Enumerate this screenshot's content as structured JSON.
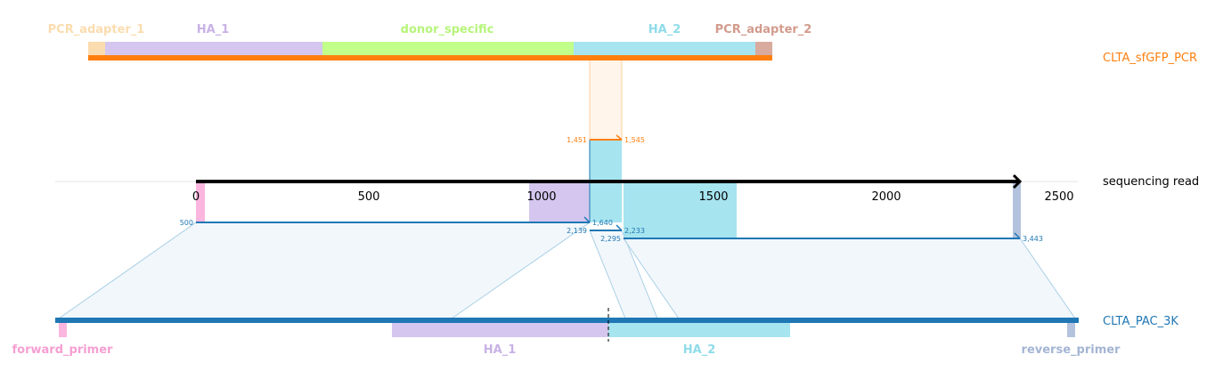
{
  "colors": {
    "pcr_track": "#ff7f0e",
    "read_track": "#000000",
    "ref_track": "#1f77b4",
    "pcr_adapter_1": "#fbdcae",
    "pcr_adapter_2": "#d9aa9e",
    "ha_1": "#d4c6ee",
    "ha_2": "#a6e4ef",
    "donor_specific": "#c2ff8a",
    "forward_primer": "#fbb6df",
    "reverse_primer": "#b3c3dd",
    "label_pcr_adapter_1": "#fbdcae",
    "label_ha_1": "#c8b2e6",
    "label_donor_specific": "#b6f57a",
    "label_ha_2": "#8fdcea",
    "label_pcr_adapter_2": "#d39b8d",
    "label_forward_primer": "#f59fd2",
    "label_reverse_primer": "#a4b5d3"
  },
  "tracks": {
    "top": "CLTA_sfGFP_PCR",
    "middle": "sequencing read",
    "bottom": "CLTA_PAC_3K"
  },
  "top_features": [
    "PCR_adapter_1",
    "HA_1",
    "donor_specific",
    "HA_2",
    "PCR_adapter_2"
  ],
  "bottom_features": [
    "forward_primer",
    "HA_1",
    "HA_2",
    "reverse_primer"
  ],
  "read_axis": {
    "ticks": [
      "0",
      "500",
      "1000",
      "1500",
      "2000",
      "2500"
    ]
  },
  "alignments": {
    "pcr": {
      "ref_start": "1,451",
      "ref_end": "1,545"
    },
    "seg1": {
      "ref_start": "500",
      "ref_end": "1,640"
    },
    "seg2": {
      "ref_start": "2,139",
      "ref_end": "2,233"
    },
    "seg3": {
      "ref_start": "2,295",
      "ref_end": "3,443"
    }
  }
}
